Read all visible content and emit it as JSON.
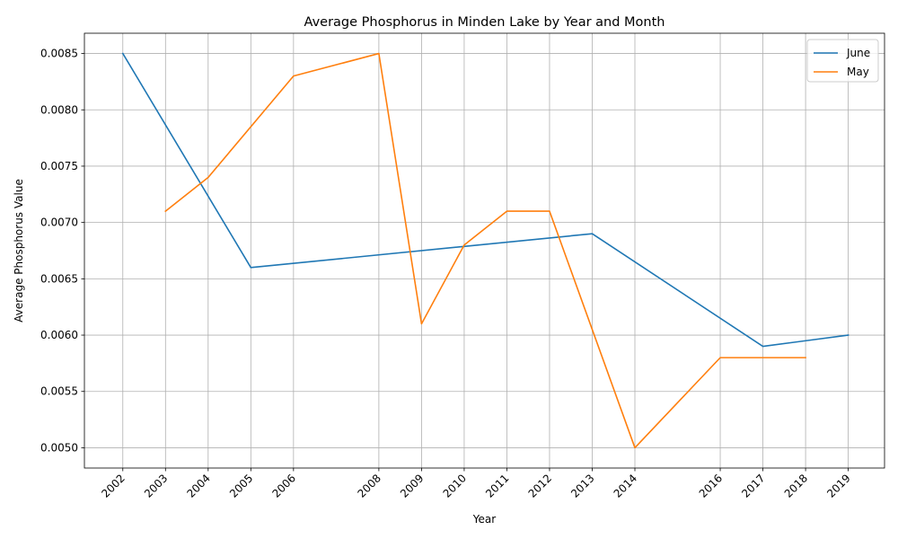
{
  "chart_data": {
    "type": "line",
    "title": "Average Phosphorus in Minden Lake by Year and Month",
    "xlabel": "Year",
    "ylabel": "Average Phosphorus Value",
    "x_ticks": [
      2002,
      2003,
      2004,
      2005,
      2006,
      2008,
      2009,
      2010,
      2011,
      2012,
      2013,
      2014,
      2016,
      2017,
      2018,
      2019
    ],
    "xlim": [
      2001.1,
      2019.85
    ],
    "ylim": [
      0.00482,
      0.00868
    ],
    "y_ticks": [
      0.005,
      0.0055,
      0.006,
      0.0065,
      0.007,
      0.0075,
      0.008,
      0.0085
    ],
    "y_tick_labels": [
      "0.0050",
      "0.0055",
      "0.0060",
      "0.0065",
      "0.0070",
      "0.0075",
      "0.0080",
      "0.0085"
    ],
    "grid": true,
    "legend_position": "top-right",
    "series": [
      {
        "name": "June",
        "color": "#1f77b4",
        "points": [
          [
            2002,
            0.0085
          ],
          [
            2005,
            0.0066
          ],
          [
            2013,
            0.0069
          ],
          [
            2017,
            0.0059
          ],
          [
            2019,
            0.006
          ]
        ]
      },
      {
        "name": "May",
        "color": "#ff7f0e",
        "points": [
          [
            2003,
            0.0071
          ],
          [
            2004,
            0.0074
          ],
          [
            2006,
            0.0083
          ],
          [
            2008,
            0.0085
          ],
          [
            2009,
            0.0061
          ],
          [
            2010,
            0.0068
          ],
          [
            2011,
            0.0071
          ],
          [
            2012,
            0.0071
          ],
          [
            2014,
            0.005
          ],
          [
            2016,
            0.0058
          ],
          [
            2017,
            0.0058
          ],
          [
            2018,
            0.0058
          ]
        ]
      }
    ]
  }
}
